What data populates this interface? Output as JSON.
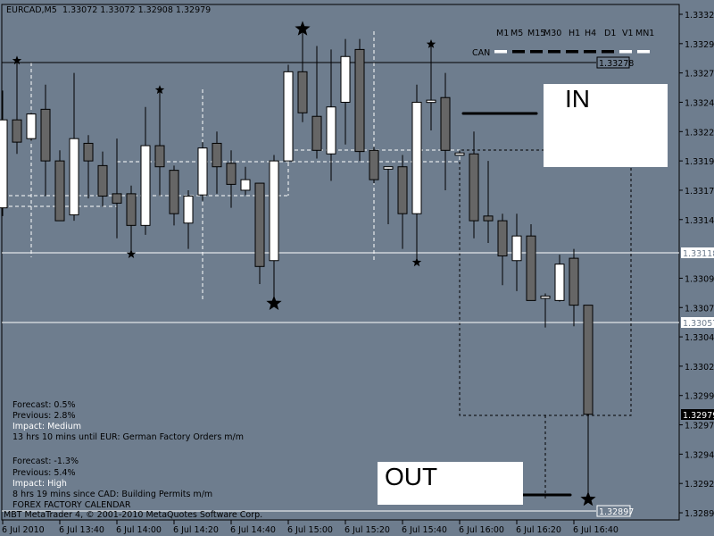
{
  "header": {
    "symbol": "EURCAD,M5",
    "ohlc": "1.33072 1.33072 1.32908 1.32979"
  },
  "timeframes": [
    "M1",
    "M5",
    "M15",
    "M30",
    "H1",
    "H4",
    "D1",
    "V1",
    "MN1"
  ],
  "currency_strength": {
    "label": "CAN",
    "states": [
      "white",
      "black",
      "black",
      "black",
      "black",
      "black",
      "black",
      "white",
      "white"
    ]
  },
  "annotations": {
    "in_label": "IN",
    "out_label": "OUT"
  },
  "price_lines": {
    "resistance": "1.33278",
    "level1": "1.33118",
    "level2": "1.33057",
    "current": "1.32979",
    "target": "1.32897"
  },
  "price_axis": [
    "1.33320",
    "1.33295",
    "1.33270",
    "1.33245",
    "1.33220",
    "1.33195",
    "1.33170",
    "1.33145",
    "1.33095",
    "1.33070",
    "1.33045",
    "1.33020",
    "1.32995",
    "1.32970",
    "1.32945",
    "1.32920",
    "1.32895"
  ],
  "time_axis": [
    "6 Jul 2010",
    "6 Jul 13:40",
    "6 Jul 14:00",
    "6 Jul 14:20",
    "6 Jul 14:40",
    "6 Jul 15:00",
    "6 Jul 15:20",
    "6 Jul 15:40",
    "6 Jul 16:00",
    "6 Jul 16:20",
    "6 Jul 16:40"
  ],
  "calendar": {
    "event1": {
      "forecast": "Forecast: 0.5%",
      "previous": "Previous: 2.8%",
      "impact": "Impact: Medium",
      "timing": "13 hrs 10 mins until EUR: German Factory Orders m/m"
    },
    "event2": {
      "forecast": "Forecast: -1.3%",
      "previous": "Previous: 5.4%",
      "impact": "Impact: High",
      "timing": "8 hrs 19 mins since CAD: Building Permits m/m"
    },
    "title": "FOREX FACTORY CALENDAR"
  },
  "footer": "MBT MetaTrader 4, © 2001-2010 MetaQuotes Software Corp.",
  "colors": {
    "background": "#6e7d8e",
    "bull": "#ffffff",
    "bear": "#666666",
    "outline": "#000000"
  },
  "chart_data": {
    "type": "candlestick",
    "symbol": "EURCAD",
    "timeframe": "M5",
    "ylim": [
      1.32885,
      1.3333
    ],
    "candles": [
      {
        "o": 1.33155,
        "h": 1.33255,
        "l": 1.33148,
        "c": 1.3323
      },
      {
        "o": 1.3323,
        "h": 1.33279,
        "l": 1.33201,
        "c": 1.33211,
        "fractal": "up"
      },
      {
        "o": 1.33214,
        "h": 1.33236,
        "l": 1.33212,
        "c": 1.33235
      },
      {
        "o": 1.33239,
        "h": 1.3326,
        "l": 1.33165,
        "c": 1.33195
      },
      {
        "o": 1.33195,
        "h": 1.33204,
        "l": 1.33144,
        "c": 1.33144
      },
      {
        "o": 1.33149,
        "h": 1.3327,
        "l": 1.33144,
        "c": 1.33214
      },
      {
        "o": 1.3321,
        "h": 1.33217,
        "l": 1.33163,
        "c": 1.33195
      },
      {
        "o": 1.33191,
        "h": 1.33203,
        "l": 1.33156,
        "c": 1.33165
      },
      {
        "o": 1.33167,
        "h": 1.33214,
        "l": 1.33129,
        "c": 1.33159
      },
      {
        "o": 1.33167,
        "h": 1.33174,
        "l": 1.33117,
        "c": 1.3314,
        "fractal": "down"
      },
      {
        "o": 1.3314,
        "h": 1.33241,
        "l": 1.33132,
        "c": 1.33208
      },
      {
        "o": 1.33208,
        "h": 1.33254,
        "l": 1.33165,
        "c": 1.3319,
        "fractal": "up"
      },
      {
        "o": 1.33187,
        "h": 1.33191,
        "l": 1.3314,
        "c": 1.3315
      },
      {
        "o": 1.33142,
        "h": 1.3317,
        "l": 1.3312,
        "c": 1.33165
      },
      {
        "o": 1.33166,
        "h": 1.33211,
        "l": 1.33161,
        "c": 1.33206
      },
      {
        "o": 1.3321,
        "h": 1.3322,
        "l": 1.33167,
        "c": 1.3319
      },
      {
        "o": 1.33193,
        "h": 1.33204,
        "l": 1.33155,
        "c": 1.33175
      },
      {
        "o": 1.3317,
        "h": 1.3319,
        "l": 1.33166,
        "c": 1.33179
      },
      {
        "o": 1.33176,
        "h": 1.33176,
        "l": 1.3309,
        "c": 1.33105
      },
      {
        "o": 1.3311,
        "h": 1.332,
        "l": 1.33075,
        "c": 1.33195,
        "fractal": "down"
      },
      {
        "o": 1.33195,
        "h": 1.33277,
        "l": 1.33195,
        "c": 1.33271
      },
      {
        "o": 1.33271,
        "h": 1.33306,
        "l": 1.33228,
        "c": 1.33236,
        "fractal": "up"
      },
      {
        "o": 1.33233,
        "h": 1.33293,
        "l": 1.33197,
        "c": 1.33204
      },
      {
        "o": 1.33201,
        "h": 1.3329,
        "l": 1.33178,
        "c": 1.33241
      },
      {
        "o": 1.33245,
        "h": 1.33299,
        "l": 1.33209,
        "c": 1.33284
      },
      {
        "o": 1.3329,
        "h": 1.33299,
        "l": 1.33195,
        "c": 1.33203
      },
      {
        "o": 1.33204,
        "h": 1.33207,
        "l": 1.33176,
        "c": 1.33179
      },
      {
        "o": 1.33188,
        "h": 1.3319,
        "l": 1.33141,
        "c": 1.3319
      },
      {
        "o": 1.3319,
        "h": 1.332,
        "l": 1.3312,
        "c": 1.3315
      },
      {
        "o": 1.3315,
        "h": 1.3326,
        "l": 1.3311,
        "c": 1.33245,
        "fractal": "down"
      },
      {
        "o": 1.33245,
        "h": 1.33293,
        "l": 1.33221,
        "c": 1.33246,
        "fractal": "up"
      },
      {
        "o": 1.33249,
        "h": 1.3327,
        "l": 1.3317,
        "c": 1.33204
      },
      {
        "o": 1.33201,
        "h": 1.33204,
        "l": 1.332,
        "c": 1.33201
      },
      {
        "o": 1.33201,
        "h": 1.3322,
        "l": 1.33129,
        "c": 1.33144
      },
      {
        "o": 1.33148,
        "h": 1.33195,
        "l": 1.33125,
        "c": 1.33144
      },
      {
        "o": 1.33144,
        "h": 1.3315,
        "l": 1.33089,
        "c": 1.33114
      },
      {
        "o": 1.3311,
        "h": 1.3315,
        "l": 1.33084,
        "c": 1.33131
      },
      {
        "o": 1.33131,
        "h": 1.33141,
        "l": 1.33076,
        "c": 1.33076
      },
      {
        "o": 1.33079,
        "h": 1.33082,
        "l": 1.33053,
        "c": 1.33079
      },
      {
        "o": 1.33076,
        "h": 1.33115,
        "l": 1.33075,
        "c": 1.33107
      },
      {
        "o": 1.33112,
        "h": 1.3312,
        "l": 1.33054,
        "c": 1.33072
      },
      {
        "o": 1.33072,
        "h": 1.33072,
        "l": 1.32908,
        "c": 1.32979,
        "fractal": "down"
      }
    ]
  }
}
